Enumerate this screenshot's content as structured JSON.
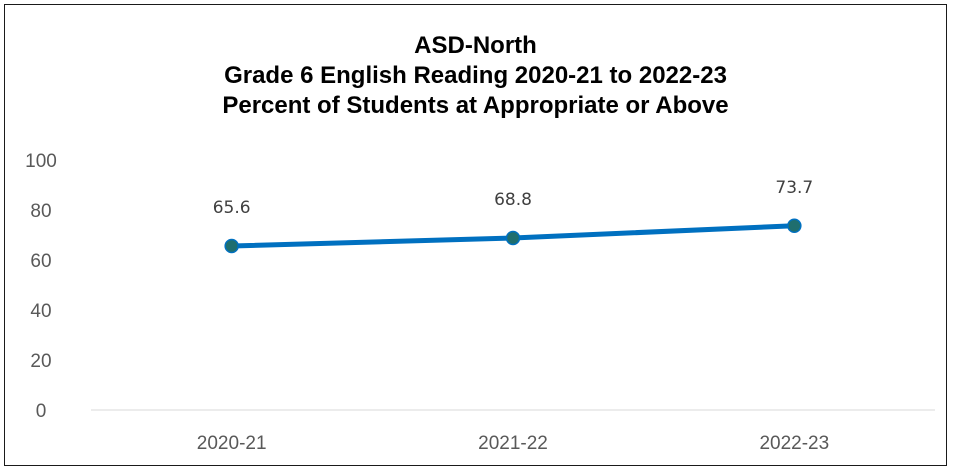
{
  "chart_data": {
    "type": "line",
    "title": "ASD-North",
    "subtitle": [
      "Grade 6 English Reading 2020-21 to 2022-23",
      "Percent of Students at Appropriate or Above"
    ],
    "categories": [
      "2020-21",
      "2021-22",
      "2022-23"
    ],
    "series": [
      {
        "values": [
          65.6,
          68.8,
          73.7
        ],
        "data_labels": [
          "65.6",
          "68.8",
          "73.7"
        ],
        "color": "#0070C0",
        "marker_color": "#1F6E6E"
      }
    ],
    "ylim": [
      0,
      100
    ],
    "yticks": [
      "0",
      "20",
      "40",
      "60",
      "80",
      "100"
    ],
    "xlabel": "",
    "ylabel": "",
    "grid": false,
    "legend": "none",
    "axis_color": "#D9D9D9"
  }
}
